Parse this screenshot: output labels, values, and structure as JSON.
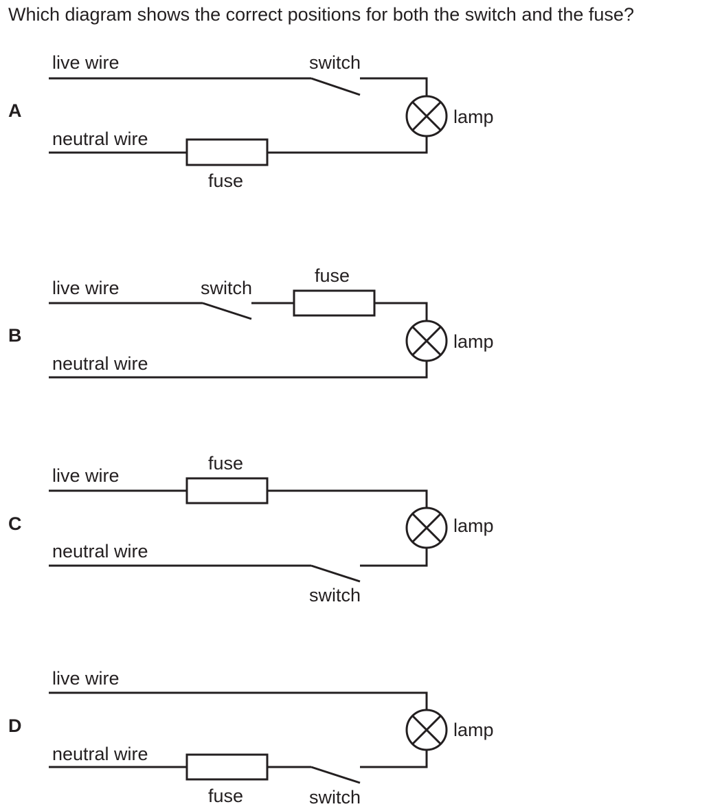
{
  "question": "Which diagram shows the correct positions for both the switch and the fuse?",
  "options": [
    {
      "letter": "A",
      "live_label": "live wire",
      "neutral_label": "neutral wire",
      "lamp_label": "lamp",
      "switch": {
        "wire": "live",
        "label": "switch"
      },
      "fuse": {
        "wire": "neutral",
        "label": "fuse"
      }
    },
    {
      "letter": "B",
      "live_label": "live wire",
      "neutral_label": "neutral wire",
      "lamp_label": "lamp",
      "switch": {
        "wire": "live",
        "label": "switch"
      },
      "fuse": {
        "wire": "live",
        "label": "fuse"
      }
    },
    {
      "letter": "C",
      "live_label": "live wire",
      "neutral_label": "neutral wire",
      "lamp_label": "lamp",
      "switch": {
        "wire": "neutral",
        "label": "switch"
      },
      "fuse": {
        "wire": "live",
        "label": "fuse"
      }
    },
    {
      "letter": "D",
      "live_label": "live wire",
      "neutral_label": "neutral wire",
      "lamp_label": "lamp",
      "switch": {
        "wire": "neutral",
        "label": "switch"
      },
      "fuse": {
        "wire": "neutral",
        "label": "fuse"
      }
    }
  ]
}
